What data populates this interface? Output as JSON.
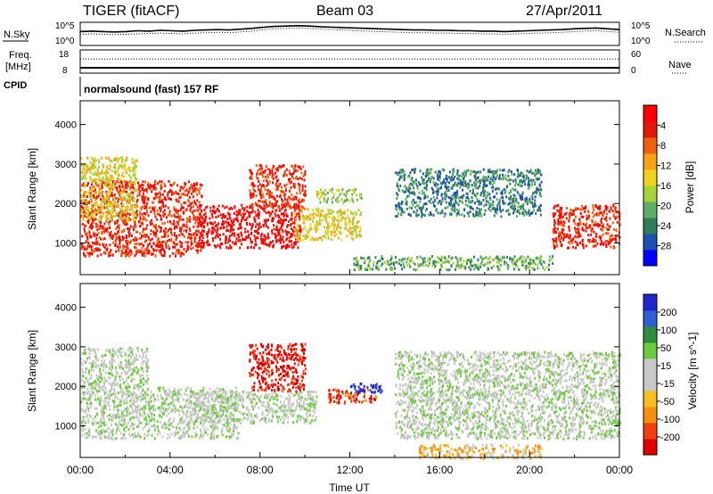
{
  "header": {
    "station": "TIGER (fitACF)",
    "beam": "Beam 03",
    "date": "27/Apr/2011"
  },
  "chart_data": [
    {
      "type": "line",
      "name": "noise-panel",
      "left_label": "N.Sky",
      "right_label": "N.Search",
      "left_ticks": [
        "10^5",
        "10^0"
      ],
      "right_ticks": [
        "10^5",
        "10^0"
      ],
      "series": [
        {
          "name": "N.Sky",
          "style": "solid",
          "values": [
            3.1,
            3.2,
            3.1,
            3.0,
            3.1,
            3.3,
            3.2,
            3.4,
            3.3,
            3.2,
            3.4,
            3.5,
            3.6,
            3.5,
            3.7,
            3.9,
            4.2,
            4.4,
            4.5,
            4.6,
            4.5,
            4.3,
            4.2,
            4.1,
            4.0,
            3.9,
            3.8,
            3.7,
            3.6,
            3.5,
            3.5,
            3.4,
            3.4,
            3.3,
            3.3,
            3.2,
            3.2,
            3.1,
            3.2,
            3.3,
            3.4,
            3.5,
            3.6,
            3.8,
            3.9,
            4.0,
            3.8,
            3.6
          ]
        },
        {
          "name": "N.Search",
          "style": "dotted",
          "values": [
            2.4,
            2.5,
            2.4,
            2.3,
            2.4,
            2.5,
            2.6,
            2.7,
            2.6,
            2.5,
            2.7,
            2.8,
            2.9,
            2.8,
            3.0,
            3.2,
            3.6,
            3.8,
            3.9,
            4.0,
            3.9,
            3.7,
            3.6,
            3.5,
            3.3,
            3.2,
            3.1,
            3.0,
            2.9,
            2.8,
            2.8,
            2.7,
            2.7,
            2.6,
            2.6,
            2.5,
            2.5,
            2.4,
            2.5,
            2.6,
            2.7,
            2.8,
            2.9,
            3.1,
            3.2,
            3.3,
            3.1,
            2.9
          ]
        }
      ]
    },
    {
      "type": "line",
      "name": "freq-nave-panel",
      "left_label_1": "Freq.",
      "left_label_2": "[MHz]",
      "right_label": "Nave",
      "left_ticks": [
        "18",
        "8"
      ],
      "right_ticks": [
        "60",
        "0"
      ],
      "cpid_label": "CPID",
      "cpid_text": "normalsound (fast) 157 RF",
      "series": [
        {
          "name": "Freq.",
          "style": "solid",
          "value": 9.8
        },
        {
          "name": "Nave",
          "style": "dotted",
          "value": 38
        }
      ]
    },
    {
      "type": "heatmap",
      "name": "power",
      "xlabel": "",
      "ylabel": "Slant Range [km]",
      "yticks": [
        "1000",
        "2000",
        "3000",
        "4000"
      ],
      "ylim": [
        200,
        4600
      ],
      "xlim": [
        0,
        24
      ],
      "colorbar_label": "Power [dB]",
      "colorbar_ticks": [
        "4",
        "8",
        "12",
        "16",
        "20",
        "24",
        "28"
      ],
      "colors": [
        "#0000ff",
        "#1e50b4",
        "#2f7d5a",
        "#5fae64",
        "#a6d23a",
        "#f0d020",
        "#f5a315",
        "#f06010",
        "#e01a0a",
        "#ff0000"
      ],
      "regions": [
        {
          "x": [
            0.0,
            5.4
          ],
          "y": [
            700,
            2600
          ],
          "level": 8
        },
        {
          "x": [
            0.0,
            2.5
          ],
          "y": [
            1600,
            3200
          ],
          "level": 5
        },
        {
          "x": [
            5.2,
            9.8
          ],
          "y": [
            900,
            2000
          ],
          "level": 9
        },
        {
          "x": [
            7.5,
            10.0
          ],
          "y": [
            1900,
            3000
          ],
          "level": 8
        },
        {
          "x": [
            9.5,
            12.5
          ],
          "y": [
            1100,
            1900
          ],
          "level": 5
        },
        {
          "x": [
            10.5,
            12.5
          ],
          "y": [
            2050,
            2400
          ],
          "level": 4
        },
        {
          "x": [
            14.0,
            20.5
          ],
          "y": [
            1700,
            2900
          ],
          "level": 2
        },
        {
          "x": [
            21.0,
            24.0
          ],
          "y": [
            900,
            2000
          ],
          "level": 8
        },
        {
          "x": [
            12.0,
            21.0
          ],
          "y": [
            350,
            700
          ],
          "level": 3
        }
      ]
    },
    {
      "type": "heatmap",
      "name": "velocity",
      "xlabel": "Time UT",
      "ylabel": "Slant Range [km]",
      "xticks": [
        "00:00",
        "04:00",
        "08:00",
        "12:00",
        "16:00",
        "20:00",
        "00:00"
      ],
      "yticks": [
        "1000",
        "2000",
        "3000",
        "4000"
      ],
      "ylim": [
        200,
        4600
      ],
      "xlim": [
        0,
        24
      ],
      "colorbar_label": "Velocity [m s^-1]",
      "colorbar_ticks": [
        "200",
        "100",
        "50",
        "15",
        "-15",
        "-50",
        "-100",
        "-200"
      ],
      "colors": [
        "#1e28c8",
        "#2f5fd0",
        "#2f8c3c",
        "#6ecb3c",
        "#c8c8c8",
        "#c8c8c8",
        "#f5c020",
        "#f59010",
        "#f04010",
        "#e00000"
      ],
      "regions": [
        {
          "x": [
            0.0,
            7.0
          ],
          "y": [
            700,
            2000
          ],
          "level": 4
        },
        {
          "x": [
            0.0,
            3.0
          ],
          "y": [
            2000,
            3000
          ],
          "level": 4
        },
        {
          "x": [
            5.0,
            10.5
          ],
          "y": [
            1100,
            1900
          ],
          "level": 4
        },
        {
          "x": [
            7.5,
            10.0
          ],
          "y": [
            1900,
            3100
          ],
          "level": 9
        },
        {
          "x": [
            11.0,
            13.2
          ],
          "y": [
            1600,
            1950
          ],
          "level": 8
        },
        {
          "x": [
            12.0,
            13.5
          ],
          "y": [
            1850,
            2100
          ],
          "level": 0
        },
        {
          "x": [
            14.0,
            24.0
          ],
          "y": [
            700,
            2900
          ],
          "level": 4
        },
        {
          "x": [
            15.0,
            20.5
          ],
          "y": [
            200,
            550
          ],
          "level": 6
        }
      ]
    }
  ]
}
